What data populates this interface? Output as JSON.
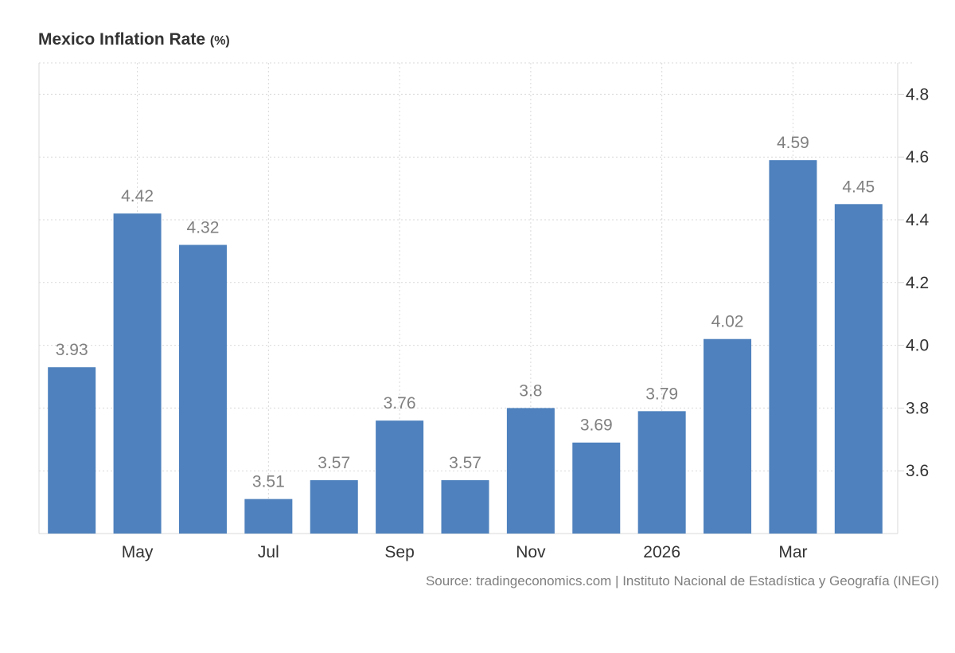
{
  "chart_data": {
    "type": "bar",
    "title": "Mexico Inflation Rate",
    "title_unit": "(%)",
    "source": "Source: tradingeconomics.com | Instituto Nacional de Estadística y Geografía (INEGI)",
    "values": [
      3.93,
      4.42,
      4.32,
      3.51,
      3.57,
      3.76,
      3.57,
      3.8,
      3.69,
      3.79,
      4.02,
      4.59,
      4.45
    ],
    "data_labels": [
      "3.93",
      "4.42",
      "4.32",
      "3.51",
      "3.57",
      "3.76",
      "3.57",
      "3.8",
      "3.69",
      "3.79",
      "4.02",
      "4.59",
      "4.45"
    ],
    "x_tick_labels": [
      "",
      "May",
      "",
      "Jul",
      "",
      "Sep",
      "",
      "Nov",
      "",
      "2026",
      "",
      "Mar",
      ""
    ],
    "y_ticks": [
      3.6,
      3.8,
      4.0,
      4.2,
      4.4,
      4.6,
      4.8
    ],
    "y_tick_labels": [
      "3.6",
      "3.8",
      "4.0",
      "4.2",
      "4.4",
      "4.6",
      "4.8"
    ],
    "ylim": [
      3.4,
      4.9
    ],
    "y_axis_side": "right",
    "grid": true,
    "legend": "none",
    "bar_color": "#4e81bd",
    "grid_color": "#d9d9d9"
  }
}
